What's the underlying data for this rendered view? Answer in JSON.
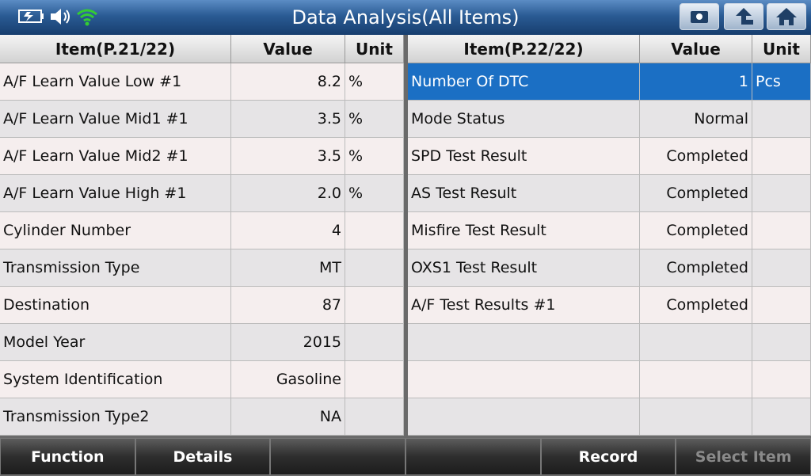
{
  "header": {
    "title": "Data Analysis(All Items)"
  },
  "left_table": {
    "columns": [
      "Item(P.21/22)",
      "Value",
      "Unit"
    ],
    "rows": [
      {
        "item": "A/F Learn Value Low #1",
        "value": "8.2",
        "unit": "%"
      },
      {
        "item": "A/F Learn Value Mid1 #1",
        "value": "3.5",
        "unit": "%"
      },
      {
        "item": "A/F Learn Value Mid2 #1",
        "value": "3.5",
        "unit": "%"
      },
      {
        "item": "A/F Learn Value High #1",
        "value": "2.0",
        "unit": "%"
      },
      {
        "item": "Cylinder Number",
        "value": "4"
      },
      {
        "item": "Transmission Type",
        "value": "MT"
      },
      {
        "item": "Destination",
        "value": "87"
      },
      {
        "item": "Model Year",
        "value": "2015"
      },
      {
        "item": "System Identification",
        "value": "Gasoline"
      },
      {
        "item": "Transmission Type2",
        "value": "NA"
      }
    ]
  },
  "right_table": {
    "columns": [
      "Item(P.22/22)",
      "Value",
      "Unit"
    ],
    "rows": [
      {
        "item": "Number Of DTC",
        "value": "1",
        "unit": "Pcs"
      },
      {
        "item": "Mode Status",
        "value": "Normal"
      },
      {
        "item": "SPD Test Result",
        "value": "Completed"
      },
      {
        "item": "AS Test Result",
        "value": "Completed"
      },
      {
        "item": "Misfire Test Result",
        "value": "Completed"
      },
      {
        "item": "OXS1 Test Result",
        "value": "Completed"
      },
      {
        "item": "A/F Test Results #1",
        "value": "Completed"
      }
    ]
  },
  "footer": {
    "buttons": [
      "Function",
      "Details",
      "Record",
      "Select Item"
    ]
  }
}
